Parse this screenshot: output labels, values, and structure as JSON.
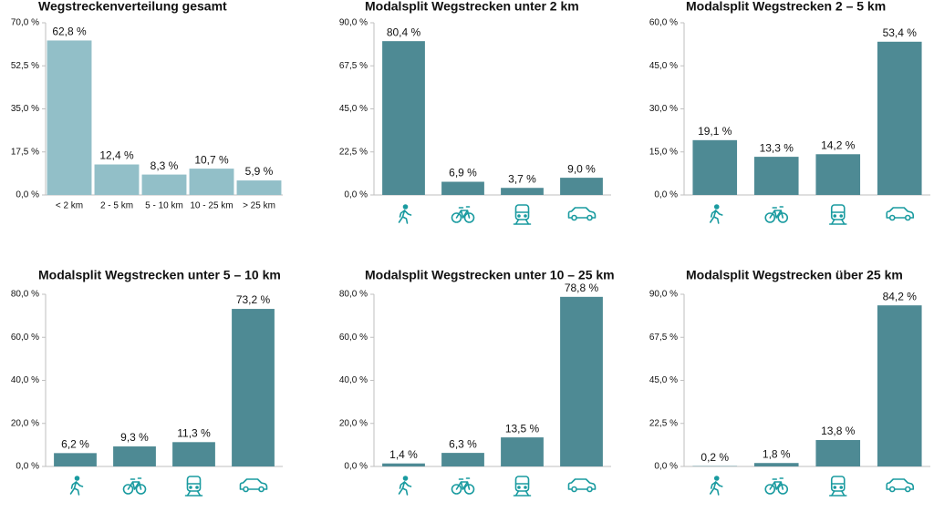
{
  "chart_data": [
    {
      "type": "bar",
      "title": "Wegstreckenverteilung gesamt",
      "categories": [
        "< 2 km",
        "2 - 5 km",
        "5 - 10 km",
        "10 - 25 km",
        "> 25 km"
      ],
      "values": [
        62.8,
        12.4,
        8.3,
        10.7,
        5.9
      ],
      "value_labels": [
        "62,8 %",
        "12,4 %",
        "8,3 %",
        "10,7 %",
        "5,9 %"
      ],
      "color": "#92bfc8",
      "ylim": [
        0,
        70
      ],
      "yticks": [
        {
          "value": 0,
          "label": "0,0 %"
        },
        {
          "value": 17.5,
          "label": "17,5 %"
        },
        {
          "value": 35,
          "label": "35,0 %"
        },
        {
          "value": 52.5,
          "label": "52,5 %"
        },
        {
          "value": 70,
          "label": "70,0 %"
        }
      ]
    },
    {
      "type": "bar",
      "title": "Modalsplit Wegstrecken unter 2 km",
      "categories": [
        null,
        null,
        null,
        null
      ],
      "values": [
        80.4,
        6.9,
        3.7,
        9.0
      ],
      "value_labels": [
        "80,4 %",
        "6,9 %",
        "3,7 %",
        "9,0 %"
      ],
      "color": "#4e8a94",
      "ylim": [
        0,
        90
      ],
      "yticks": [
        {
          "value": 0,
          "label": "0,0 %"
        },
        {
          "value": 22.5,
          "label": "22,5 %"
        },
        {
          "value": 45,
          "label": "45,0 %"
        },
        {
          "value": 67.5,
          "label": "67,5 %"
        },
        {
          "value": 90,
          "label": "90,0 %"
        }
      ]
    },
    {
      "type": "bar",
      "title": "Modalsplit Wegstrecken 2 – 5 km",
      "categories": [
        null,
        null,
        null,
        null
      ],
      "values": [
        19.1,
        13.3,
        14.2,
        53.4
      ],
      "value_labels": [
        "19,1 %",
        "13,3 %",
        "14,2 %",
        "53,4 %"
      ],
      "color": "#4e8a94",
      "ylim": [
        0,
        60
      ],
      "yticks": [
        {
          "value": 0,
          "label": "0,0 %"
        },
        {
          "value": 15,
          "label": "15,0 %"
        },
        {
          "value": 30,
          "label": "30,0 %"
        },
        {
          "value": 45,
          "label": "45,0 %"
        },
        {
          "value": 60,
          "label": "60,0 %"
        }
      ]
    },
    {
      "type": "bar",
      "title": "Modalsplit Wegstrecken unter 5 – 10 km",
      "categories": [
        null,
        null,
        null,
        null
      ],
      "values": [
        6.2,
        9.3,
        11.3,
        73.2
      ],
      "value_labels": [
        "6,2 %",
        "9,3 %",
        "11,3 %",
        "73,2 %"
      ],
      "color": "#4e8a94",
      "ylim": [
        0,
        80
      ],
      "yticks": [
        {
          "value": 0,
          "label": "0,0 %"
        },
        {
          "value": 20,
          "label": "20,0 %"
        },
        {
          "value": 40,
          "label": "40,0 %"
        },
        {
          "value": 60,
          "label": "60,0 %"
        },
        {
          "value": 80,
          "label": "80,0 %"
        }
      ]
    },
    {
      "type": "bar",
      "title": "Modalsplit Wegstrecken unter 10 – 25 km",
      "categories": [
        null,
        null,
        null,
        null
      ],
      "values": [
        1.4,
        6.3,
        13.5,
        78.8
      ],
      "value_labels": [
        "1,4 %",
        "6,3 %",
        "13,5 %",
        "78,8 %"
      ],
      "color": "#4e8a94",
      "ylim": [
        0,
        80
      ],
      "yticks": [
        {
          "value": 0,
          "label": "0,0 %"
        },
        {
          "value": 20,
          "label": "20,0 %"
        },
        {
          "value": 40,
          "label": "40,0 %"
        },
        {
          "value": 60,
          "label": "60,0 %"
        },
        {
          "value": 80,
          "label": "80,0 %"
        }
      ]
    },
    {
      "type": "bar",
      "title": "Modalsplit Wegstrecken über 25 km",
      "categories": [
        null,
        null,
        null,
        null
      ],
      "values": [
        0.2,
        1.8,
        13.8,
        84.2
      ],
      "value_labels": [
        "0,2 %",
        "1,8 %",
        "13,8 %",
        "84,2 %"
      ],
      "color": "#4e8a94",
      "ylim": [
        0,
        90
      ],
      "yticks": [
        {
          "value": 0,
          "label": "0,0 %"
        },
        {
          "value": 22.5,
          "label": "22,5 %"
        },
        {
          "value": 45,
          "label": "45,0 %"
        },
        {
          "value": 67.5,
          "label": "67,5 %"
        },
        {
          "value": 90,
          "label": "90,0 %"
        }
      ]
    }
  ]
}
